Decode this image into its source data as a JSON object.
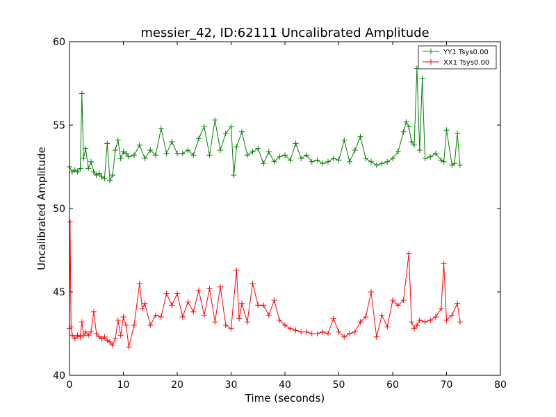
{
  "chart_data": {
    "type": "line",
    "title": "messier_42, ID:62111 Uncalibrated Amplitude",
    "xlabel": "Time (seconds)",
    "ylabel": "Uncalibrated Amplitude",
    "xlim": [
      0,
      80
    ],
    "ylim": [
      40,
      60
    ],
    "xticks": [
      "0",
      "10",
      "20",
      "30",
      "40",
      "50",
      "60",
      "70",
      "80"
    ],
    "yticks": [
      "40",
      "45",
      "50",
      "55",
      "60"
    ],
    "grid": false,
    "legend_position": "top-right",
    "marker": "+",
    "series": [
      {
        "name": "YY1 Tsys0.00",
        "color": "#008000",
        "x": [
          0.0,
          0.5,
          1.0,
          1.5,
          2.0,
          2.3,
          2.6,
          3.0,
          3.5,
          4.0,
          4.5,
          5.0,
          5.5,
          6.0,
          6.5,
          7.0,
          7.5,
          8.0,
          8.5,
          9.0,
          9.5,
          10.0,
          10.5,
          11.0,
          12.0,
          13.0,
          14.0,
          15.0,
          16.0,
          17.0,
          18.0,
          19.0,
          20.0,
          21.0,
          22.0,
          23.0,
          24.0,
          25.0,
          26.0,
          27.0,
          28.0,
          29.0,
          30.0,
          30.5,
          31.0,
          32.0,
          33.0,
          34.0,
          35.0,
          36.0,
          37.0,
          38.0,
          39.0,
          40.0,
          41.0,
          42.0,
          43.0,
          44.0,
          45.0,
          46.0,
          47.0,
          48.0,
          49.0,
          50.0,
          51.0,
          52.0,
          53.0,
          54.0,
          55.0,
          56.0,
          57.0,
          58.0,
          59.0,
          60.0,
          61.0,
          62.0,
          62.5,
          63.0,
          63.5,
          64.0,
          64.5,
          65.0,
          65.5,
          66.0,
          67.0,
          68.0,
          69.0,
          69.5,
          70.0,
          71.0,
          71.5,
          72.0,
          72.5
        ],
        "y": [
          52.5,
          52.2,
          52.3,
          52.2,
          52.4,
          56.9,
          53.0,
          53.6,
          52.4,
          52.8,
          52.2,
          52.0,
          52.1,
          51.9,
          51.8,
          53.9,
          51.7,
          52.0,
          53.5,
          54.1,
          53.0,
          53.4,
          53.3,
          53.1,
          53.2,
          53.8,
          53.0,
          53.5,
          53.2,
          54.8,
          53.3,
          54.0,
          53.3,
          53.3,
          53.5,
          53.2,
          54.2,
          54.9,
          53.2,
          55.3,
          53.5,
          54.5,
          54.9,
          52.0,
          53.7,
          54.6,
          53.2,
          53.4,
          53.6,
          52.7,
          53.4,
          52.8,
          53.1,
          53.2,
          52.9,
          53.9,
          53.0,
          53.2,
          52.8,
          52.9,
          52.7,
          52.8,
          53.0,
          52.9,
          54.1,
          52.8,
          53.5,
          54.3,
          53.0,
          52.8,
          52.6,
          52.7,
          52.8,
          53.0,
          53.4,
          54.6,
          55.2,
          54.9,
          54.0,
          53.8,
          58.4,
          53.5,
          57.8,
          53.0,
          53.1,
          53.3,
          52.9,
          52.8,
          54.7,
          52.6,
          52.7,
          54.5,
          52.6
        ]
      },
      {
        "name": "XX1 Tsys0.00",
        "color": "#ff0000",
        "x": [
          0.0,
          0.1,
          0.3,
          0.5,
          1.0,
          1.5,
          2.0,
          2.3,
          2.6,
          3.0,
          3.5,
          4.0,
          4.5,
          5.0,
          5.5,
          6.0,
          6.5,
          7.0,
          7.5,
          8.0,
          8.5,
          9.0,
          9.5,
          10.0,
          10.5,
          11.0,
          12.0,
          13.0,
          13.5,
          14.0,
          15.0,
          16.0,
          17.0,
          18.0,
          19.0,
          20.0,
          21.0,
          22.0,
          23.0,
          24.0,
          25.0,
          26.0,
          27.0,
          28.0,
          29.0,
          30.0,
          31.0,
          31.5,
          32.0,
          33.0,
          34.0,
          35.0,
          36.0,
          37.0,
          38.0,
          39.0,
          40.0,
          41.0,
          42.0,
          43.0,
          44.0,
          45.0,
          46.0,
          47.0,
          48.0,
          49.0,
          50.0,
          51.0,
          52.0,
          53.0,
          54.0,
          55.0,
          56.0,
          57.0,
          58.0,
          59.0,
          60.0,
          61.0,
          62.0,
          63.0,
          63.5,
          64.0,
          64.5,
          65.0,
          66.0,
          67.0,
          68.0,
          69.0,
          69.5,
          70.0,
          71.0,
          72.0,
          72.5
        ],
        "y": [
          42.8,
          49.2,
          42.9,
          42.4,
          42.2,
          42.4,
          42.3,
          43.2,
          42.4,
          42.6,
          42.4,
          42.6,
          43.8,
          42.5,
          42.3,
          42.2,
          42.3,
          42.1,
          42.0,
          41.8,
          42.2,
          43.3,
          42.4,
          43.5,
          43.0,
          41.7,
          43.0,
          45.5,
          44.0,
          44.3,
          43.0,
          43.6,
          43.5,
          44.9,
          44.2,
          44.9,
          43.5,
          44.4,
          43.8,
          45.1,
          43.6,
          45.2,
          43.2,
          45.3,
          43.0,
          42.8,
          46.3,
          43.4,
          44.3,
          43.2,
          45.5,
          44.2,
          44.2,
          43.6,
          44.5,
          43.3,
          43.0,
          42.8,
          42.7,
          42.6,
          42.6,
          42.5,
          42.5,
          42.6,
          42.5,
          43.4,
          42.6,
          42.3,
          42.5,
          42.6,
          43.2,
          43.5,
          45.0,
          42.3,
          43.6,
          42.9,
          44.5,
          44.2,
          44.5,
          47.3,
          43.2,
          42.8,
          43.0,
          43.3,
          43.2,
          43.3,
          43.5,
          44.0,
          46.7,
          43.3,
          43.6,
          44.3,
          43.2
        ]
      }
    ]
  }
}
